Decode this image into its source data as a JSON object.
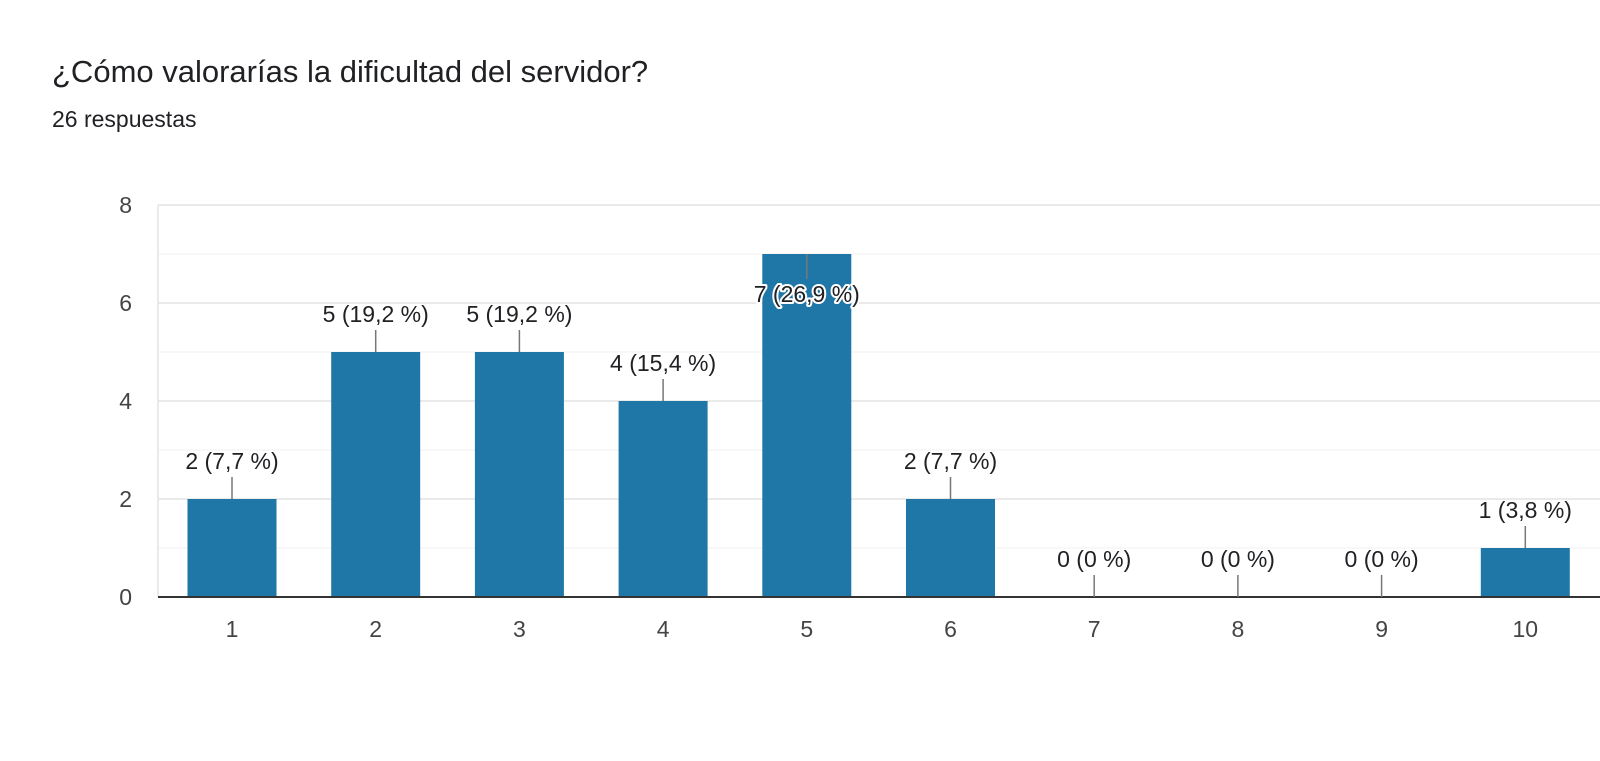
{
  "question": {
    "title": "¿Cómo valorarías la dificultad del servidor?",
    "responses": "26 respuestas"
  },
  "colors": {
    "bar": "#1f77a8",
    "axis": "#333333",
    "grid": "#e8e8e8",
    "leader": "#777777"
  },
  "chart_data": {
    "type": "bar",
    "categories": [
      "1",
      "2",
      "3",
      "4",
      "5",
      "6",
      "7",
      "8",
      "9",
      "10"
    ],
    "values": [
      2,
      5,
      5,
      4,
      7,
      2,
      0,
      0,
      0,
      1
    ],
    "data_labels": [
      "2 (7,7 %)",
      "5 (19,2 %)",
      "5 (19,2 %)",
      "4 (15,4 %)",
      "7 (26,9 %)",
      "2 (7,7 %)",
      "0 (0 %)",
      "0 (0 %)",
      "0 (0 %)",
      "1 (3,8 %)"
    ],
    "y_ticks": [
      0,
      2,
      4,
      6,
      8
    ],
    "ylim": [
      0,
      8
    ],
    "grid": true
  }
}
